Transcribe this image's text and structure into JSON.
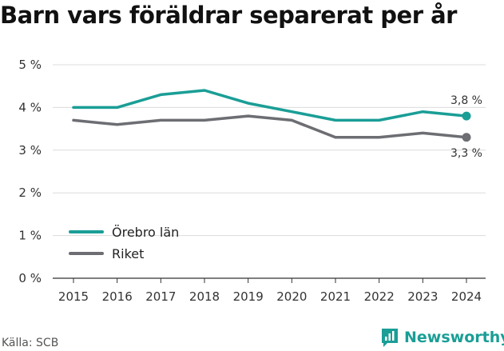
{
  "title": "Barn vars föräldrar separerat per år",
  "source": "Källa: SCB",
  "brand": {
    "name": "Newsworthy",
    "color": "#1a9e96"
  },
  "chart_data": {
    "type": "line",
    "title": "Barn vars föräldrar separerat per år",
    "xlabel": "",
    "ylabel": "",
    "categories": [
      "2015",
      "2016",
      "2017",
      "2018",
      "2019",
      "2020",
      "2021",
      "2022",
      "2023",
      "2024"
    ],
    "y_ticks": [
      "0 %",
      "1 %",
      "2 %",
      "3 %",
      "4 %",
      "5 %"
    ],
    "ylim": [
      0,
      5
    ],
    "grid": true,
    "legend": "left",
    "series": [
      {
        "name": "Örebro län",
        "color": "#1a9e96",
        "values": [
          4.0,
          4.0,
          4.3,
          4.4,
          4.1,
          3.9,
          3.7,
          3.7,
          3.9,
          3.8
        ],
        "end_label": "3,8 %"
      },
      {
        "name": "Riket",
        "color": "#6d6e73",
        "values": [
          3.7,
          3.6,
          3.7,
          3.7,
          3.8,
          3.7,
          3.3,
          3.3,
          3.4,
          3.3
        ],
        "end_label": "3,3 %"
      }
    ]
  }
}
